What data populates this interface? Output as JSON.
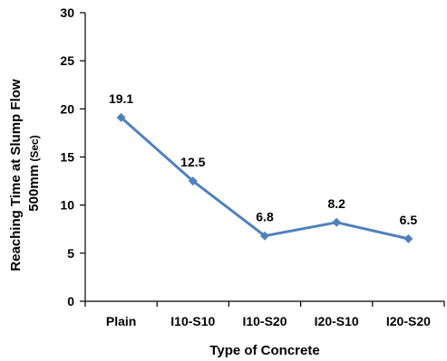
{
  "chart_data": {
    "type": "line",
    "categories": [
      "Plain",
      "I10-S10",
      "I10-S20",
      "I20-S10",
      "I20-S20"
    ],
    "series": [
      {
        "values": [
          19.1,
          12.5,
          6.8,
          8.2,
          6.5
        ],
        "color": "#4F81BD",
        "marker": "diamond"
      }
    ],
    "data_labels": [
      "19.1",
      "12.5",
      "6.8",
      "8.2",
      "6.5"
    ],
    "xlabel": "Type of Concrete",
    "ylabel_line1": "Reaching Time  at Slump Flow",
    "ylabel_line2_main": "500mm",
    "ylabel_line2_unit": " (Sec)",
    "ylim": [
      0,
      30
    ],
    "yticks": [
      0,
      5,
      10,
      15,
      20,
      25,
      30
    ],
    "ytick_labels": [
      "0",
      "5",
      "10",
      "15",
      "20",
      "25",
      "30"
    ],
    "grid": false,
    "legend": "none"
  }
}
